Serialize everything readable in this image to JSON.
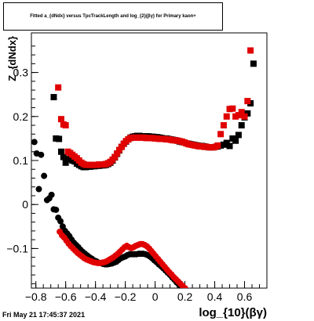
{
  "title_box": {
    "text": "Fitted a_{dNdx} versus TpcTrackLength and log_{2}(βγ) for Primary kaon+"
  },
  "footer": {
    "timestamp": "Fri May 21 17:45:37 2021"
  },
  "chart_data": {
    "type": "scatter",
    "title": "Fitted a_{dNdx} versus TpcTrackLength and log_{2}(βγ) for Primary kaon+",
    "xlabel": "log_{10}(βγ)",
    "ylabel": "Z_{dNdx}",
    "xlim": [
      -0.83,
      0.75
    ],
    "ylim": [
      -0.19,
      0.39
    ],
    "xticks": [
      -0.8,
      -0.6,
      -0.4,
      -0.2,
      0,
      0.2,
      0.4,
      0.6
    ],
    "xtick_labels": [
      "−0.8",
      "−0.6",
      "−0.4",
      "−0.2",
      "0",
      "0.2",
      "0.4",
      "0.6"
    ],
    "yticks": [
      -0.1,
      0,
      0.1,
      0.2,
      0.3
    ],
    "ytick_labels": [
      "−0.1",
      "0",
      "0.1",
      "0.2",
      "0.3"
    ],
    "grid": false,
    "colors": {
      "black_series": "#000000",
      "red_series": "#e00000"
    },
    "series": [
      {
        "marker": "square",
        "color": "#000000",
        "points": [
          [
            -0.68,
            0.244
          ],
          [
            -0.665,
            0.15
          ],
          [
            -0.645,
            0.149
          ],
          [
            -0.63,
            0.12
          ],
          [
            -0.615,
            0.108
          ],
          [
            -0.6,
            0.095
          ],
          [
            -0.585,
            0.103
          ],
          [
            -0.57,
            0.103
          ],
          [
            -0.555,
            0.1
          ],
          [
            -0.54,
            0.098
          ],
          [
            -0.525,
            0.093
          ],
          [
            -0.51,
            0.09
          ],
          [
            -0.495,
            0.087
          ],
          [
            -0.48,
            0.085
          ],
          [
            -0.465,
            0.085
          ],
          [
            -0.45,
            0.086
          ],
          [
            -0.435,
            0.086
          ],
          [
            -0.42,
            0.087
          ],
          [
            -0.405,
            0.087
          ],
          [
            -0.39,
            0.088
          ],
          [
            -0.375,
            0.088
          ],
          [
            -0.36,
            0.089
          ],
          [
            -0.345,
            0.089
          ],
          [
            -0.33,
            0.09
          ],
          [
            -0.315,
            0.092
          ],
          [
            -0.3,
            0.095
          ],
          [
            -0.285,
            0.1
          ],
          [
            -0.27,
            0.107
          ],
          [
            -0.255,
            0.115
          ],
          [
            -0.24,
            0.123
          ],
          [
            -0.225,
            0.131
          ],
          [
            -0.21,
            0.138
          ],
          [
            -0.195,
            0.143
          ],
          [
            -0.18,
            0.148
          ],
          [
            -0.165,
            0.152
          ],
          [
            -0.15,
            0.154
          ],
          [
            -0.135,
            0.155
          ],
          [
            -0.12,
            0.156
          ],
          [
            -0.105,
            0.156
          ],
          [
            -0.09,
            0.155
          ],
          [
            -0.075,
            0.155
          ],
          [
            -0.06,
            0.155
          ],
          [
            -0.045,
            0.155
          ],
          [
            -0.03,
            0.154
          ],
          [
            -0.015,
            0.154
          ],
          [
            0.0,
            0.153
          ],
          [
            0.015,
            0.153
          ],
          [
            0.03,
            0.152
          ],
          [
            0.045,
            0.151
          ],
          [
            0.06,
            0.15
          ],
          [
            0.075,
            0.15
          ],
          [
            0.09,
            0.149
          ],
          [
            0.105,
            0.148
          ],
          [
            0.12,
            0.147
          ],
          [
            0.135,
            0.146
          ],
          [
            0.15,
            0.145
          ],
          [
            0.165,
            0.143
          ],
          [
            0.18,
            0.142
          ],
          [
            0.195,
            0.141
          ],
          [
            0.21,
            0.139
          ],
          [
            0.225,
            0.138
          ],
          [
            0.24,
            0.137
          ],
          [
            0.255,
            0.136
          ],
          [
            0.27,
            0.135
          ],
          [
            0.285,
            0.134
          ],
          [
            0.3,
            0.133
          ],
          [
            0.315,
            0.133
          ],
          [
            0.33,
            0.132
          ],
          [
            0.345,
            0.131
          ],
          [
            0.36,
            0.13
          ],
          [
            0.375,
            0.13
          ],
          [
            0.39,
            0.13
          ],
          [
            0.405,
            0.131
          ],
          [
            0.42,
            0.132
          ],
          [
            0.44,
            0.134
          ],
          [
            0.46,
            0.136
          ],
          [
            0.48,
            0.14
          ],
          [
            0.5,
            0.133
          ],
          [
            0.52,
            0.15
          ],
          [
            0.54,
            0.145
          ],
          [
            0.56,
            0.158
          ],
          [
            0.58,
            0.18
          ],
          [
            0.6,
            0.198
          ],
          [
            0.62,
            0.207
          ],
          [
            0.64,
            0.23
          ],
          [
            0.66,
            0.32
          ]
        ]
      },
      {
        "marker": "square",
        "color": "#e00000",
        "points": [
          [
            -0.65,
            0.266
          ],
          [
            -0.63,
            0.194
          ],
          [
            -0.615,
            0.182
          ],
          [
            -0.6,
            0.18
          ],
          [
            -0.585,
            0.12
          ],
          [
            -0.57,
            0.117
          ],
          [
            -0.555,
            0.113
          ],
          [
            -0.54,
            0.109
          ],
          [
            -0.525,
            0.105
          ],
          [
            -0.51,
            0.1
          ],
          [
            -0.495,
            0.095
          ],
          [
            -0.48,
            0.092
          ],
          [
            -0.465,
            0.09
          ],
          [
            -0.45,
            0.09
          ],
          [
            -0.435,
            0.09
          ],
          [
            -0.42,
            0.09
          ],
          [
            -0.405,
            0.09
          ],
          [
            -0.39,
            0.09
          ],
          [
            -0.375,
            0.091
          ],
          [
            -0.36,
            0.091
          ],
          [
            -0.345,
            0.091
          ],
          [
            -0.33,
            0.092
          ],
          [
            -0.315,
            0.094
          ],
          [
            -0.3,
            0.097
          ],
          [
            -0.285,
            0.102
          ],
          [
            -0.27,
            0.108
          ],
          [
            -0.255,
            0.116
          ],
          [
            -0.24,
            0.124
          ],
          [
            -0.225,
            0.131
          ],
          [
            -0.21,
            0.138
          ],
          [
            -0.195,
            0.144
          ],
          [
            -0.18,
            0.148
          ],
          [
            -0.165,
            0.151
          ],
          [
            -0.15,
            0.152
          ],
          [
            -0.135,
            0.152
          ],
          [
            -0.12,
            0.152
          ],
          [
            -0.105,
            0.152
          ],
          [
            -0.09,
            0.152
          ],
          [
            -0.075,
            0.152
          ],
          [
            -0.06,
            0.151
          ],
          [
            -0.045,
            0.151
          ],
          [
            -0.03,
            0.151
          ],
          [
            -0.015,
            0.151
          ],
          [
            0.0,
            0.15
          ],
          [
            0.015,
            0.15
          ],
          [
            0.03,
            0.149
          ],
          [
            0.045,
            0.149
          ],
          [
            0.06,
            0.149
          ],
          [
            0.075,
            0.148
          ],
          [
            0.09,
            0.148
          ],
          [
            0.105,
            0.147
          ],
          [
            0.12,
            0.146
          ],
          [
            0.135,
            0.146
          ],
          [
            0.15,
            0.145
          ],
          [
            0.165,
            0.144
          ],
          [
            0.18,
            0.143
          ],
          [
            0.195,
            0.141
          ],
          [
            0.21,
            0.139
          ],
          [
            0.225,
            0.137
          ],
          [
            0.24,
            0.136
          ],
          [
            0.255,
            0.135
          ],
          [
            0.27,
            0.134
          ],
          [
            0.285,
            0.133
          ],
          [
            0.3,
            0.132
          ],
          [
            0.315,
            0.132
          ],
          [
            0.33,
            0.131
          ],
          [
            0.345,
            0.131
          ],
          [
            0.36,
            0.13
          ],
          [
            0.375,
            0.13
          ],
          [
            0.39,
            0.13
          ],
          [
            0.405,
            0.131
          ],
          [
            0.42,
            0.134
          ],
          [
            0.44,
            0.16
          ],
          [
            0.46,
            0.18
          ],
          [
            0.48,
            0.2
          ],
          [
            0.5,
            0.217
          ],
          [
            0.52,
            0.218
          ],
          [
            0.54,
            0.2
          ],
          [
            0.56,
            0.203
          ],
          [
            0.58,
            0.21
          ],
          [
            0.6,
            0.2
          ],
          [
            0.62,
            0.235
          ],
          [
            0.64,
            0.35
          ]
        ]
      },
      {
        "marker": "circle",
        "color": "#000000",
        "points": [
          [
            -0.81,
            0.142
          ],
          [
            -0.795,
            0.116
          ],
          [
            -0.78,
            0.035
          ],
          [
            -0.765,
            0.113
          ],
          [
            -0.745,
            0.065
          ],
          [
            -0.725,
            0.01
          ],
          [
            -0.71,
            0.014
          ],
          [
            -0.695,
            0.022
          ],
          [
            -0.68,
            -0.011
          ],
          [
            -0.665,
            -0.012
          ],
          [
            -0.65,
            -0.03
          ],
          [
            -0.635,
            -0.038
          ],
          [
            -0.62,
            -0.05
          ],
          [
            -0.605,
            -0.06
          ],
          [
            -0.59,
            -0.066
          ],
          [
            -0.575,
            -0.072
          ],
          [
            -0.56,
            -0.08
          ],
          [
            -0.545,
            -0.087
          ],
          [
            -0.53,
            -0.092
          ],
          [
            -0.515,
            -0.097
          ],
          [
            -0.5,
            -0.103
          ],
          [
            -0.485,
            -0.108
          ],
          [
            -0.47,
            -0.112
          ],
          [
            -0.455,
            -0.116
          ],
          [
            -0.44,
            -0.12
          ],
          [
            -0.425,
            -0.123
          ],
          [
            -0.41,
            -0.127
          ],
          [
            -0.395,
            -0.129
          ],
          [
            -0.38,
            -0.132
          ],
          [
            -0.365,
            -0.133
          ],
          [
            -0.35,
            -0.135
          ],
          [
            -0.335,
            -0.136
          ],
          [
            -0.32,
            -0.136
          ],
          [
            -0.305,
            -0.135
          ],
          [
            -0.29,
            -0.134
          ],
          [
            -0.275,
            -0.132
          ],
          [
            -0.26,
            -0.13
          ],
          [
            -0.245,
            -0.126
          ],
          [
            -0.23,
            -0.122
          ],
          [
            -0.215,
            -0.12
          ],
          [
            -0.2,
            -0.118
          ],
          [
            -0.185,
            -0.115
          ],
          [
            -0.17,
            -0.113
          ],
          [
            -0.155,
            -0.113
          ],
          [
            -0.14,
            -0.113
          ],
          [
            -0.125,
            -0.113
          ],
          [
            -0.11,
            -0.112
          ],
          [
            -0.095,
            -0.112
          ],
          [
            -0.08,
            -0.112
          ],
          [
            -0.065,
            -0.113
          ],
          [
            -0.05,
            -0.115
          ],
          [
            -0.035,
            -0.118
          ],
          [
            -0.02,
            -0.122
          ],
          [
            -0.005,
            -0.127
          ],
          [
            0.01,
            -0.131
          ],
          [
            0.025,
            -0.136
          ],
          [
            0.04,
            -0.14
          ],
          [
            0.055,
            -0.145
          ],
          [
            0.07,
            -0.15
          ],
          [
            0.085,
            -0.155
          ],
          [
            0.1,
            -0.16
          ],
          [
            0.115,
            -0.166
          ],
          [
            0.13,
            -0.171
          ],
          [
            0.145,
            -0.177
          ],
          [
            0.16,
            -0.182
          ],
          [
            0.175,
            -0.186
          ],
          [
            0.19,
            -0.19
          ]
        ]
      },
      {
        "marker": "circle",
        "color": "#e00000",
        "points": [
          [
            -0.64,
            -0.062
          ],
          [
            -0.625,
            -0.07
          ],
          [
            -0.61,
            -0.075
          ],
          [
            -0.595,
            -0.082
          ],
          [
            -0.58,
            -0.089
          ],
          [
            -0.565,
            -0.095
          ],
          [
            -0.55,
            -0.1
          ],
          [
            -0.535,
            -0.105
          ],
          [
            -0.52,
            -0.11
          ],
          [
            -0.505,
            -0.114
          ],
          [
            -0.49,
            -0.118
          ],
          [
            -0.475,
            -0.122
          ],
          [
            -0.46,
            -0.125
          ],
          [
            -0.445,
            -0.127
          ],
          [
            -0.43,
            -0.129
          ],
          [
            -0.415,
            -0.131
          ],
          [
            -0.4,
            -0.132
          ],
          [
            -0.385,
            -0.133
          ],
          [
            -0.37,
            -0.133
          ],
          [
            -0.355,
            -0.132
          ],
          [
            -0.34,
            -0.131
          ],
          [
            -0.325,
            -0.129
          ],
          [
            -0.31,
            -0.126
          ],
          [
            -0.295,
            -0.123
          ],
          [
            -0.28,
            -0.12
          ],
          [
            -0.265,
            -0.116
          ],
          [
            -0.25,
            -0.112
          ],
          [
            -0.235,
            -0.107
          ],
          [
            -0.22,
            -0.102
          ],
          [
            -0.205,
            -0.097
          ],
          [
            -0.19,
            -0.094
          ],
          [
            -0.175,
            -0.097
          ],
          [
            -0.16,
            -0.099
          ],
          [
            -0.145,
            -0.097
          ],
          [
            -0.13,
            -0.094
          ],
          [
            -0.115,
            -0.092
          ],
          [
            -0.1,
            -0.09
          ],
          [
            -0.085,
            -0.09
          ],
          [
            -0.07,
            -0.092
          ],
          [
            -0.055,
            -0.095
          ],
          [
            -0.04,
            -0.1
          ],
          [
            -0.025,
            -0.106
          ],
          [
            -0.01,
            -0.112
          ],
          [
            0.005,
            -0.118
          ],
          [
            0.02,
            -0.124
          ],
          [
            0.035,
            -0.13
          ],
          [
            0.05,
            -0.136
          ],
          [
            0.065,
            -0.142
          ],
          [
            0.08,
            -0.148
          ],
          [
            0.095,
            -0.154
          ],
          [
            0.11,
            -0.159
          ],
          [
            0.125,
            -0.165
          ],
          [
            0.14,
            -0.17
          ],
          [
            0.155,
            -0.175
          ],
          [
            0.17,
            -0.18
          ],
          [
            0.185,
            -0.185
          ],
          [
            0.2,
            -0.19
          ]
        ]
      }
    ]
  }
}
